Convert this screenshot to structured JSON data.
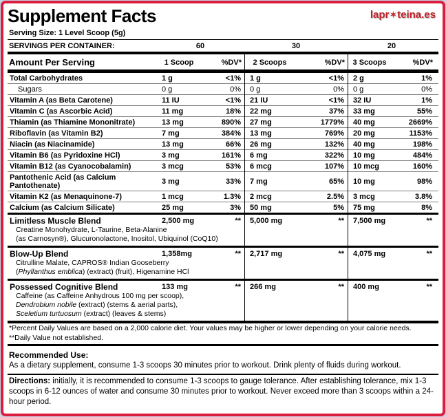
{
  "colors": {
    "border_red": "#db1e3d",
    "logo_red": "#c02128"
  },
  "header": {
    "title": "Supplement Facts",
    "logo_pre": "lapr",
    "logo_star": "✶",
    "logo_post": "teina.es",
    "serving_size": "Serving Size: 1 Level Scoop (5g)",
    "servings_label": "SERVINGS PER CONTAINER:",
    "servings": [
      "60",
      "30",
      "20"
    ]
  },
  "table": {
    "amount_header": "Amount Per Serving",
    "col_headers": [
      {
        "amount": "1 Scoop",
        "dv": "%DV*"
      },
      {
        "amount": "2 Scoops",
        "dv": "%DV*"
      },
      {
        "amount": "3 Scoops",
        "dv": "%DV*"
      }
    ],
    "rows": [
      {
        "name": "Total Carbohydrates",
        "indent": false,
        "cells": [
          "1 g",
          "<1%",
          "1 g",
          "<1%",
          "2 g",
          "1%"
        ]
      },
      {
        "name": "Sugars",
        "indent": true,
        "cells": [
          "0 g",
          "0%",
          "0 g",
          "0%",
          "0 g",
          "0%"
        ]
      },
      {
        "name": "Vitamin A (as Beta Carotene)",
        "indent": false,
        "cells": [
          "11 IU",
          "<1%",
          "21 IU",
          "<1%",
          "32 IU",
          "1%"
        ]
      },
      {
        "name": "Vitamin C (as Ascorbic Acid)",
        "indent": false,
        "cells": [
          "11 mg",
          "18%",
          "22 mg",
          "37%",
          "33 mg",
          "55%"
        ]
      },
      {
        "name": "Thiamin (as Thiamine Mononitrate)",
        "indent": false,
        "cells": [
          "13 mg",
          "890%",
          "27 mg",
          "1779%",
          "40 mg",
          "2669%"
        ]
      },
      {
        "name": "Riboflavin (as Vitamin B2)",
        "indent": false,
        "cells": [
          "7 mg",
          "384%",
          "13 mg",
          "769%",
          "20 mg",
          "1153%"
        ]
      },
      {
        "name": "Niacin (as Niacinamide)",
        "indent": false,
        "cells": [
          "13 mg",
          "66%",
          "26 mg",
          "132%",
          "40 mg",
          "198%"
        ]
      },
      {
        "name": "Vitamin B6 (as Pyridoxine HCl)",
        "indent": false,
        "cells": [
          "3 mg",
          "161%",
          "6 mg",
          "322%",
          "10 mg",
          "484%"
        ]
      },
      {
        "name": "Vitamin B12 (as Cyanocobalamin)",
        "indent": false,
        "cells": [
          "3 mcg",
          "53%",
          "6 mcg",
          "107%",
          "10 mcg",
          "160%"
        ]
      },
      {
        "name": "Pantothenic Acid (as Calcium Pantothenate)",
        "indent": false,
        "cells": [
          "3 mg",
          "33%",
          "7 mg",
          "65%",
          "10 mg",
          "98%"
        ]
      },
      {
        "name": "Vitamin K2 (as Menaquinone-7)",
        "indent": false,
        "cells": [
          "1 mcg",
          "1.3%",
          "2 mcg",
          "2.5%",
          "3 mcg",
          "3.8%"
        ]
      },
      {
        "name": "Calcium (as Calcium Silicate)",
        "indent": false,
        "cells": [
          "25 mg",
          "3%",
          "50 mg",
          "5%",
          "75 mg",
          "8%"
        ]
      }
    ],
    "blends": [
      {
        "name": "Limitless Muscle Blend",
        "amounts": [
          "2,500 mg",
          "**",
          "5,000 mg",
          "**",
          "7,500 mg",
          "**"
        ],
        "details": [
          [
            {
              "t": "Creatine Monohydrate, L-Taurine, Beta-Alanine"
            }
          ],
          [
            {
              "t": "(as Carnosyn®), Glucuronolactone, Inositol, Ubiquinol (CoQ10)"
            }
          ]
        ]
      },
      {
        "name": "Blow-Up Blend",
        "amounts": [
          "1,358mg",
          "**",
          "2,717 mg",
          "**",
          "4,075 mg",
          "**"
        ],
        "details": [
          [
            {
              "t": "Citrulline Malate, CAPROS® Indian Gooseberry"
            }
          ],
          [
            {
              "t": "("
            },
            {
              "t": "Phyllanthus emblica",
              "i": true
            },
            {
              "t": ") (extract) (fruit), Higenamine HCl"
            }
          ]
        ]
      },
      {
        "name": "Possessed Cognitive Blend",
        "amounts": [
          "133 mg",
          "**",
          "266 mg",
          "**",
          "400 mg",
          "**"
        ],
        "details": [
          [
            {
              "t": "Caffeine (as Caffeine Anhydrous 100 mg per scoop),"
            }
          ],
          [
            {
              "t": "Dendrobium nobile",
              "i": true
            },
            {
              "t": " (extract) (stems & aerial parts),"
            }
          ],
          [
            {
              "t": "Sceletium turtuosum",
              "i": true
            },
            {
              "t": " (extract) (leaves & stems)"
            }
          ]
        ]
      }
    ]
  },
  "footnotes": [
    "*Percent Daily Values are based on a 2,000 calorie diet. Your values may be higher or lower depending on your calorie needs.",
    "**Daily Value not established."
  ],
  "recommended": {
    "label": "Recommended Use:",
    "text": "As a dietary supplement, consume 1-3 scoops 30 minutes prior to workout. Drink plenty of fluids during workout."
  },
  "directions": {
    "label": "Directions:",
    "text": " initially, it is recommended to consume 1-3 scoops to gauge tolerance. After establishing tolerance, mix 1-3 scoops in 6-12 ounces of water and consume 30 minutes prior to workout. Never exceed more than 3 scoops within a 24-hour period."
  }
}
